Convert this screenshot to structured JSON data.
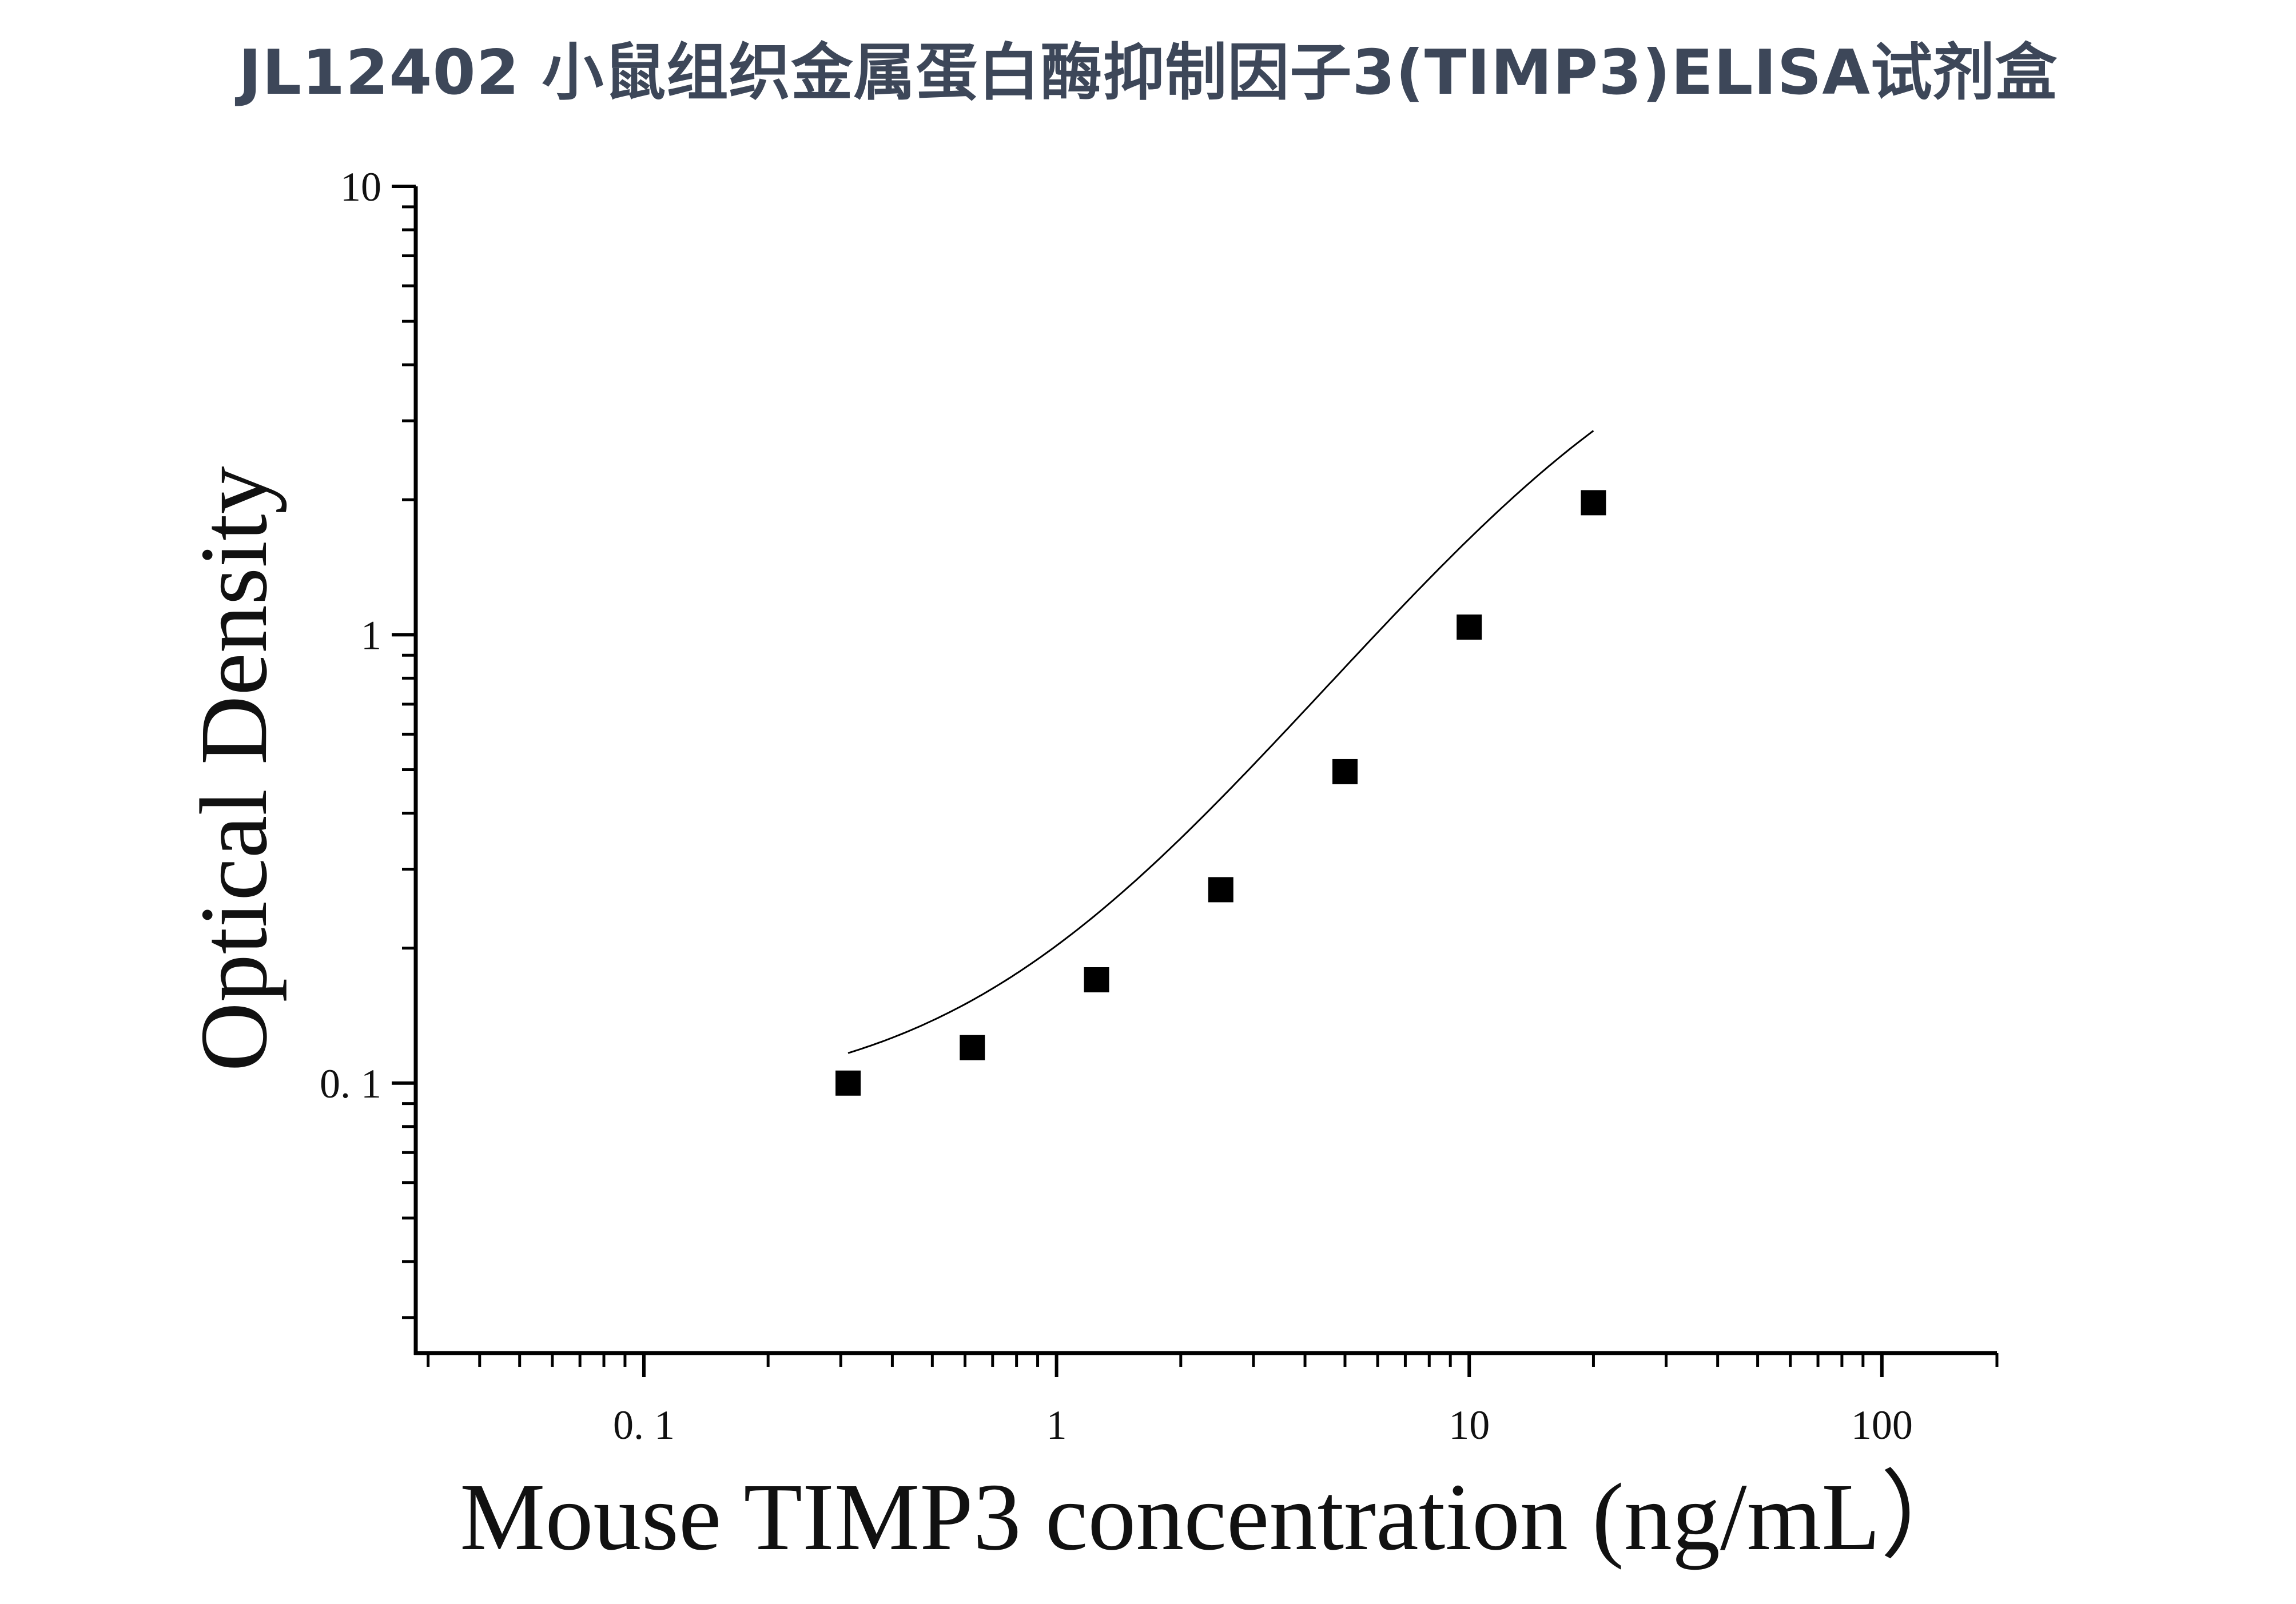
{
  "chart_data": {
    "type": "scatter",
    "title": "JL12402 小鼠组织金属蛋白酶抑制因子3(TIMP3)ELISA试剂盒",
    "xlabel": "Mouse TIMP3 concentration (ng/mL）",
    "ylabel": "Optical Density",
    "x_scale": "log",
    "y_scale": "log",
    "xlim": [
      0.028,
      190
    ],
    "ylim": [
      0.025,
      10
    ],
    "x_tick_labels": [
      {
        "value": 0.1,
        "label": "0. 1"
      },
      {
        "value": 1,
        "label": "1"
      },
      {
        "value": 10,
        "label": "10"
      },
      {
        "value": 100,
        "label": "100"
      }
    ],
    "y_tick_labels": [
      {
        "value": 0.1,
        "label": "0. 1"
      },
      {
        "value": 1,
        "label": "1"
      },
      {
        "value": 10,
        "label": "10"
      }
    ],
    "grid": false,
    "series": [
      {
        "x": [
          0.3125,
          0.625,
          1.25,
          2.5,
          5,
          10,
          20
        ],
        "y": [
          0.1,
          0.12,
          0.17,
          0.27,
          0.495,
          1.04,
          1.97
        ]
      }
    ],
    "fit_curve": true,
    "colors": {
      "title": "#3d4759",
      "marks": "#000000"
    }
  }
}
